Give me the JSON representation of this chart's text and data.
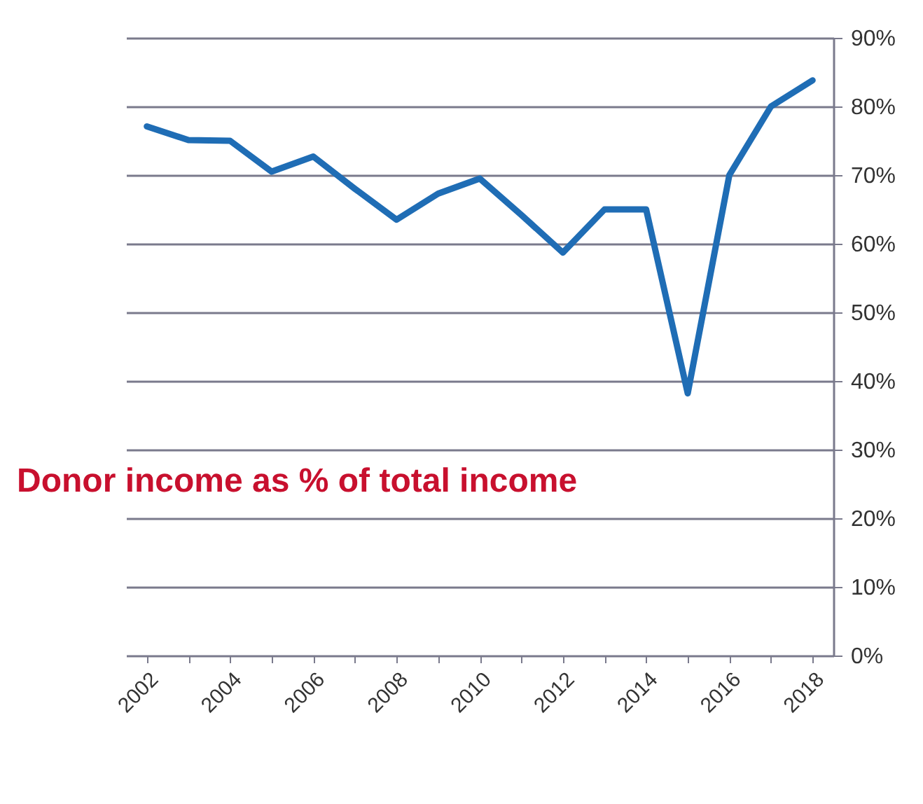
{
  "chart_data": {
    "type": "line",
    "categories": [
      "2002",
      null,
      "2004",
      null,
      "2006",
      null,
      "2008",
      null,
      "2010",
      null,
      "2012",
      null,
      "2014",
      null,
      "2016",
      null,
      "2018"
    ],
    "series": [
      {
        "color": "#1f6db5",
        "values": [
          77.1,
          75.1,
          75,
          70.5,
          72.7,
          68,
          63.5,
          67.3,
          69.5,
          64.2,
          58.7,
          65,
          65,
          38.2,
          70,
          80,
          83.8
        ]
      }
    ],
    "ylim": [
      0,
      90
    ],
    "yticks": [
      {
        "value": 0,
        "label": "0%"
      },
      {
        "value": 10,
        "label": "10%"
      },
      {
        "value": 20,
        "label": "20%"
      },
      {
        "value": 30,
        "label": "30%"
      },
      {
        "value": 40,
        "label": "40%"
      },
      {
        "value": 50,
        "label": "50%"
      },
      {
        "value": 60,
        "label": "60%"
      },
      {
        "value": 70,
        "label": "70%"
      },
      {
        "value": 80,
        "label": "80%"
      },
      {
        "value": 90,
        "label": "90%"
      }
    ],
    "annotations": [
      "Donor income as % of total income"
    ],
    "grid": "y",
    "marker": "none",
    "line_style": "solid"
  }
}
